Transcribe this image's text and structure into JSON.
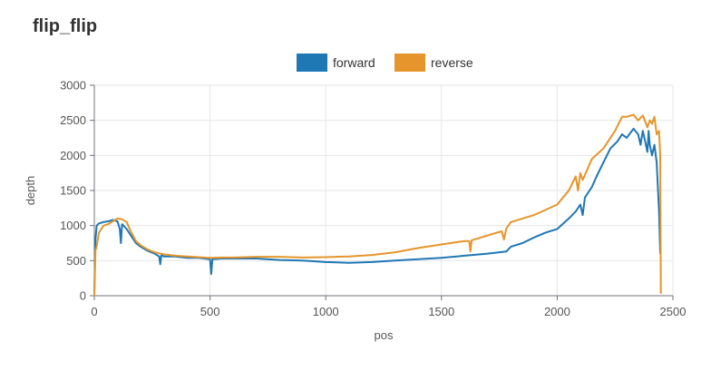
{
  "title": "flip_flip",
  "colors": {
    "forward": "#1f77b4",
    "reverse": "#e5952b",
    "grid": "#e6e6e6",
    "axis": "#6e7079",
    "text": "#555555"
  },
  "chart_data": {
    "type": "line",
    "xlabel": "pos",
    "ylabel": "depth",
    "xlim": [
      0,
      2500
    ],
    "ylim": [
      0,
      3000
    ],
    "xticks": [
      0,
      500,
      1000,
      1500,
      2000,
      2500
    ],
    "yticks": [
      0,
      500,
      1000,
      1500,
      2000,
      2500,
      3000
    ],
    "grid": true,
    "legend_position": "top-center",
    "series": [
      {
        "name": "forward",
        "color": "#1f77b4",
        "x": [
          0,
          5,
          10,
          20,
          40,
          60,
          80,
          100,
          110,
          115,
          120,
          140,
          160,
          180,
          200,
          230,
          260,
          280,
          285,
          290,
          300,
          350,
          400,
          450,
          500,
          505,
          510,
          550,
          600,
          700,
          800,
          900,
          1000,
          1100,
          1200,
          1300,
          1400,
          1500,
          1600,
          1700,
          1780,
          1800,
          1850,
          1900,
          1950,
          2000,
          2050,
          2080,
          2100,
          2110,
          2120,
          2150,
          2170,
          2200,
          2230,
          2260,
          2280,
          2300,
          2330,
          2350,
          2360,
          2370,
          2380,
          2390,
          2395,
          2400,
          2410,
          2420,
          2430,
          2440,
          2445
        ],
        "y": [
          50,
          800,
          1000,
          1030,
          1050,
          1060,
          1080,
          1060,
          950,
          750,
          1020,
          950,
          850,
          750,
          700,
          640,
          600,
          560,
          450,
          580,
          560,
          560,
          540,
          540,
          520,
          310,
          520,
          530,
          530,
          530,
          510,
          500,
          480,
          470,
          480,
          500,
          520,
          540,
          570,
          600,
          630,
          700,
          750,
          830,
          900,
          950,
          1100,
          1200,
          1300,
          1150,
          1400,
          1550,
          1700,
          1900,
          2100,
          2200,
          2300,
          2250,
          2380,
          2300,
          2150,
          2350,
          2200,
          2050,
          2350,
          2150,
          2000,
          2150,
          1900,
          1200,
          600
        ]
      },
      {
        "name": "reverse",
        "color": "#e5952b",
        "x": [
          0,
          5,
          10,
          20,
          40,
          60,
          80,
          100,
          120,
          140,
          160,
          180,
          200,
          230,
          260,
          300,
          350,
          400,
          450,
          500,
          550,
          600,
          650,
          700,
          800,
          900,
          1000,
          1100,
          1200,
          1300,
          1400,
          1500,
          1600,
          1620,
          1625,
          1630,
          1700,
          1760,
          1770,
          1780,
          1800,
          1900,
          2000,
          2050,
          2080,
          2090,
          2100,
          2110,
          2130,
          2150,
          2200,
          2250,
          2280,
          2300,
          2330,
          2350,
          2370,
          2390,
          2400,
          2410,
          2420,
          2430,
          2440,
          2445,
          2448
        ],
        "y": [
          0,
          650,
          700,
          900,
          1000,
          1020,
          1060,
          1100,
          1090,
          1050,
          900,
          780,
          720,
          660,
          620,
          590,
          570,
          560,
          550,
          540,
          545,
          545,
          550,
          555,
          555,
          545,
          550,
          560,
          580,
          620,
          680,
          730,
          780,
          780,
          630,
          790,
          860,
          920,
          800,
          960,
          1050,
          1150,
          1300,
          1500,
          1700,
          1500,
          1750,
          1650,
          1800,
          1950,
          2100,
          2350,
          2550,
          2550,
          2580,
          2500,
          2570,
          2400,
          2500,
          2450,
          2550,
          2300,
          2350,
          2000,
          30
        ]
      }
    ]
  }
}
